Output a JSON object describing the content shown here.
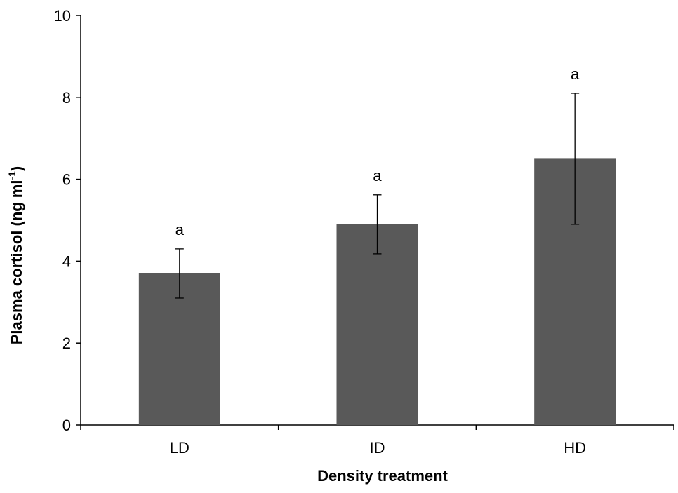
{
  "chart_data": {
    "type": "bar",
    "title": "",
    "xlabel": "Density treatment",
    "ylabel": "Plasma cortisol (ng ml",
    "ylabel_superscript": "-1",
    "ylabel_suffix": ")",
    "categories": [
      "LD",
      "ID",
      "HD"
    ],
    "series": [
      {
        "values": [
          3.7,
          4.9,
          6.5
        ],
        "error": [
          0.6,
          0.72,
          1.6
        ],
        "significance": [
          "a",
          "a",
          "a"
        ]
      }
    ],
    "ylim": [
      0,
      10
    ],
    "yticks": [
      "0",
      "2",
      "4",
      "6",
      "8",
      "10"
    ],
    "grid": false,
    "legend": "none",
    "colors": {
      "bar": "#595959",
      "axis": "#000000",
      "text": "#000000"
    }
  }
}
